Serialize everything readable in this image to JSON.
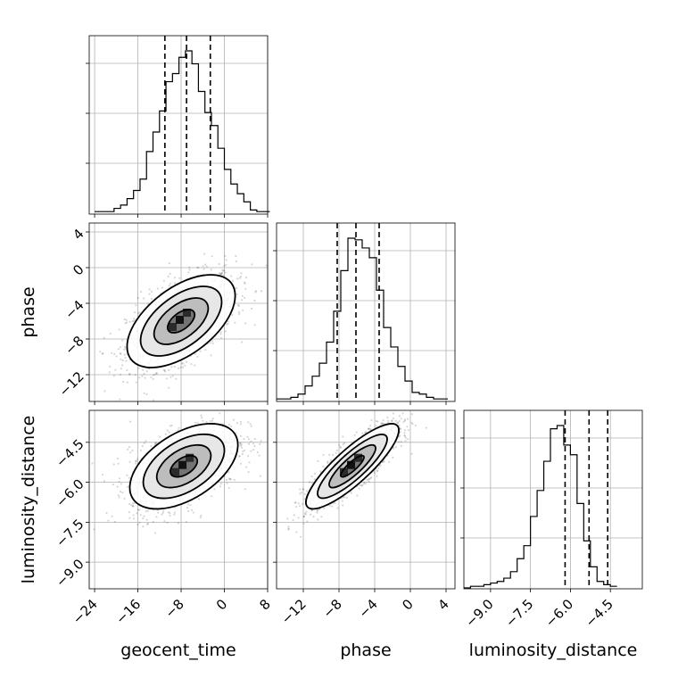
{
  "chart_data": {
    "type": "corner",
    "grid": true,
    "parameters": [
      "geocent_time",
      "phase",
      "luminosity_distance"
    ],
    "axes": {
      "geocent_time": {
        "range": [
          -25,
          8
        ],
        "ticks": [
          -24,
          -16,
          -8,
          0,
          8
        ],
        "tick_labels": [
          "−24",
          "−16",
          "−8",
          "0",
          "8"
        ]
      },
      "phase": {
        "range": [
          -15,
          5
        ],
        "ticks": [
          -12,
          -8,
          -4,
          0,
          4
        ],
        "tick_labels": [
          "−12",
          "−8",
          "−4",
          "0",
          "4"
        ]
      },
      "luminosity_distance": {
        "range": [
          -10.0,
          -3.3
        ],
        "ticks": [
          -9.0,
          -7.5,
          -6.0,
          -4.5
        ],
        "tick_labels": [
          "−9.0",
          "−7.5",
          "−6.0",
          "−4.5"
        ]
      }
    },
    "marginals": {
      "geocent_time": {
        "bin_start": -24,
        "bin_width": 1.2,
        "counts": [
          0.01,
          0.01,
          0.01,
          0.03,
          0.05,
          0.09,
          0.14,
          0.21,
          0.38,
          0.5,
          0.63,
          0.81,
          0.86,
          0.96,
          1.0,
          0.92,
          0.75,
          0.62,
          0.54,
          0.4,
          0.27,
          0.18,
          0.12,
          0.07,
          0.02,
          0.01,
          0.01
        ],
        "quantiles": [
          -11.0,
          -7.0,
          -2.6
        ]
      },
      "phase": {
        "bin_start": -15,
        "bin_width": 0.8,
        "counts": [
          0.01,
          0.01,
          0.02,
          0.04,
          0.09,
          0.15,
          0.23,
          0.36,
          0.55,
          0.8,
          1.0,
          0.99,
          0.94,
          0.88,
          0.68,
          0.45,
          0.33,
          0.21,
          0.12,
          0.05,
          0.04,
          0.02,
          0.01,
          0.01
        ],
        "quantiles": [
          -8.2,
          -6.1,
          -3.5
        ]
      },
      "luminosity_distance": {
        "bin_start": -10.0,
        "bin_width": 0.25,
        "counts": [
          0.0,
          0.01,
          0.01,
          0.02,
          0.03,
          0.04,
          0.06,
          0.1,
          0.18,
          0.26,
          0.44,
          0.6,
          0.78,
          0.98,
          1.0,
          0.88,
          0.82,
          0.52,
          0.29,
          0.13,
          0.04,
          0.02,
          0.01
        ],
        "quantiles": [
          -6.2,
          -5.3,
          -4.6
        ]
      }
    },
    "joints": [
      {
        "x": "geocent_time",
        "y": "phase",
        "center": [
          -8.0,
          -6.0
        ],
        "sigma": [
          5.0,
          2.6
        ],
        "rho": 0.55,
        "contour_levels": [
          0.5,
          1.0,
          1.5,
          2.0
        ]
      },
      {
        "x": "geocent_time",
        "y": "luminosity_distance",
        "center": [
          -7.5,
          -5.4
        ],
        "sigma": [
          5.0,
          0.8
        ],
        "rho": 0.5,
        "contour_levels": [
          0.5,
          1.0,
          1.5,
          2.0
        ]
      },
      {
        "x": "phase",
        "y": "luminosity_distance",
        "center": [
          -6.5,
          -5.4
        ],
        "sigma": [
          2.6,
          0.8
        ],
        "rho": 0.85,
        "contour_levels": [
          0.5,
          1.0,
          1.5,
          2.0
        ]
      }
    ],
    "xlabels": [
      "geocent_time",
      "phase",
      "luminosity_distance"
    ],
    "ylabels": [
      "",
      "phase",
      "luminosity_distance"
    ]
  }
}
